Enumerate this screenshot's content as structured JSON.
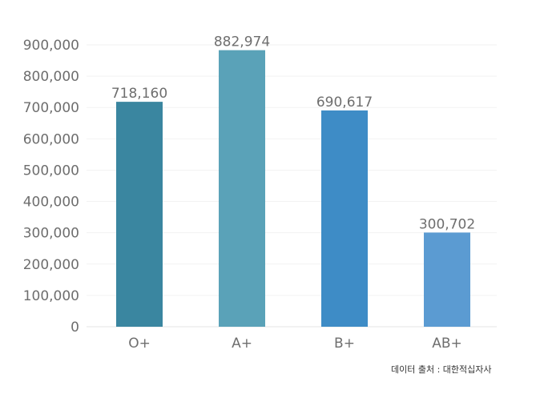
{
  "chart_data": {
    "type": "bar",
    "categories": [
      "O+",
      "A+",
      "B+",
      "AB+"
    ],
    "values": [
      718160,
      882974,
      690617,
      300702
    ],
    "value_labels": [
      "718,160",
      "882,974",
      "690,617",
      "300,702"
    ],
    "bar_colors": [
      "#3a86a0",
      "#5aa2b8",
      "#3e8cc6",
      "#5b9bd2"
    ],
    "ylim": [
      0,
      900000
    ],
    "yticks": [
      0,
      100000,
      200000,
      300000,
      400000,
      500000,
      600000,
      700000,
      800000,
      900000
    ],
    "ytick_labels": [
      "0",
      "100,000",
      "200,000",
      "300,000",
      "400,000",
      "500,000",
      "600,000",
      "700,000",
      "800,000",
      "900,000"
    ],
    "grid": true,
    "legend": "none"
  },
  "source_note": "데이터 출처 : 대한적십자사"
}
